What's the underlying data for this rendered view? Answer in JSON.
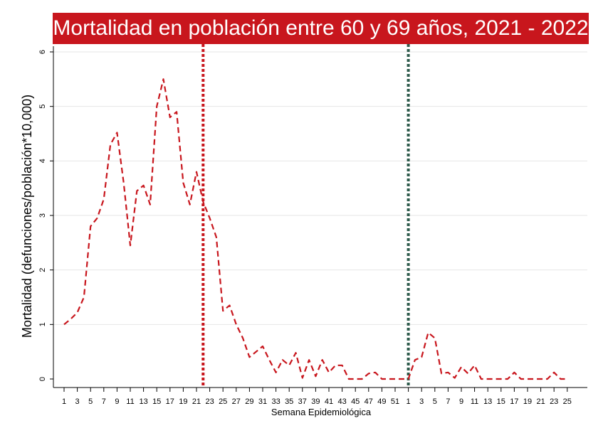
{
  "chart_data": {
    "type": "line",
    "title": "Mortalidad en población entre 60 y 69 años, 2021 - 2022",
    "xlabel": "Semana Epidemiológica",
    "ylabel": "Mortalidad (defunciones/población*10,000)",
    "ylim": [
      0,
      6
    ],
    "yticks": [
      0,
      1,
      2,
      3,
      4,
      5,
      6
    ],
    "grid": "horizontal",
    "xtick_labels": [
      "1",
      "3",
      "5",
      "7",
      "9",
      "11",
      "13",
      "15",
      "17",
      "19",
      "21",
      "23",
      "25",
      "27",
      "29",
      "31",
      "33",
      "35",
      "37",
      "39",
      "41",
      "43",
      "45",
      "47",
      "49",
      "51",
      "1",
      "3",
      "5",
      "7",
      "9",
      "11",
      "13",
      "15",
      "17",
      "19",
      "21",
      "23",
      "25"
    ],
    "x": [
      "2021-01",
      "2021-02",
      "2021-03",
      "2021-04",
      "2021-05",
      "2021-06",
      "2021-07",
      "2021-08",
      "2021-09",
      "2021-10",
      "2021-11",
      "2021-12",
      "2021-13",
      "2021-14",
      "2021-15",
      "2021-16",
      "2021-17",
      "2021-18",
      "2021-19",
      "2021-20",
      "2021-21",
      "2021-22",
      "2021-23",
      "2021-24",
      "2021-25",
      "2021-26",
      "2021-27",
      "2021-28",
      "2021-29",
      "2021-30",
      "2021-31",
      "2021-32",
      "2021-33",
      "2021-34",
      "2021-35",
      "2021-36",
      "2021-37",
      "2021-38",
      "2021-39",
      "2021-40",
      "2021-41",
      "2021-42",
      "2021-43",
      "2021-44",
      "2021-45",
      "2021-46",
      "2021-47",
      "2021-48",
      "2021-49",
      "2021-50",
      "2021-51",
      "2021-52",
      "2022-01",
      "2022-02",
      "2022-03",
      "2022-04",
      "2022-05",
      "2022-06",
      "2022-07",
      "2022-08",
      "2022-09",
      "2022-10",
      "2022-11",
      "2022-12",
      "2022-13",
      "2022-14",
      "2022-15",
      "2022-16",
      "2022-17",
      "2022-18",
      "2022-19",
      "2022-20",
      "2022-21",
      "2022-22",
      "2022-23",
      "2022-24",
      "2022-25"
    ],
    "series": [
      {
        "color": "#c8161d",
        "style": "dashed",
        "values": [
          1.0,
          1.1,
          1.22,
          1.5,
          2.8,
          2.95,
          3.3,
          4.3,
          4.52,
          3.6,
          2.45,
          3.45,
          3.55,
          3.2,
          5.0,
          5.5,
          4.8,
          4.9,
          3.6,
          3.2,
          3.8,
          3.25,
          2.95,
          2.6,
          1.25,
          1.35,
          1.0,
          0.75,
          0.4,
          0.5,
          0.6,
          0.35,
          0.12,
          0.35,
          0.25,
          0.48,
          0.02,
          0.35,
          0.05,
          0.35,
          0.12,
          0.25,
          0.25,
          0.0,
          0.0,
          0.0,
          0.1,
          0.12,
          0.0,
          0.0,
          0.0,
          0.0,
          0.0,
          0.35,
          0.4,
          0.85,
          0.75,
          0.1,
          0.12,
          0.02,
          0.22,
          0.1,
          0.25,
          0.0,
          0.0,
          0.0,
          0.0,
          0.0,
          0.12,
          0.0,
          0.0,
          0.0,
          0.0,
          0.0,
          0.12,
          0.0,
          0.0
        ]
      }
    ],
    "vlines": [
      {
        "x": "2021-22",
        "color": "#c8161d",
        "style": "dotted"
      },
      {
        "x": "2022-01",
        "color": "#2e5b4c",
        "style": "dotted"
      }
    ]
  }
}
